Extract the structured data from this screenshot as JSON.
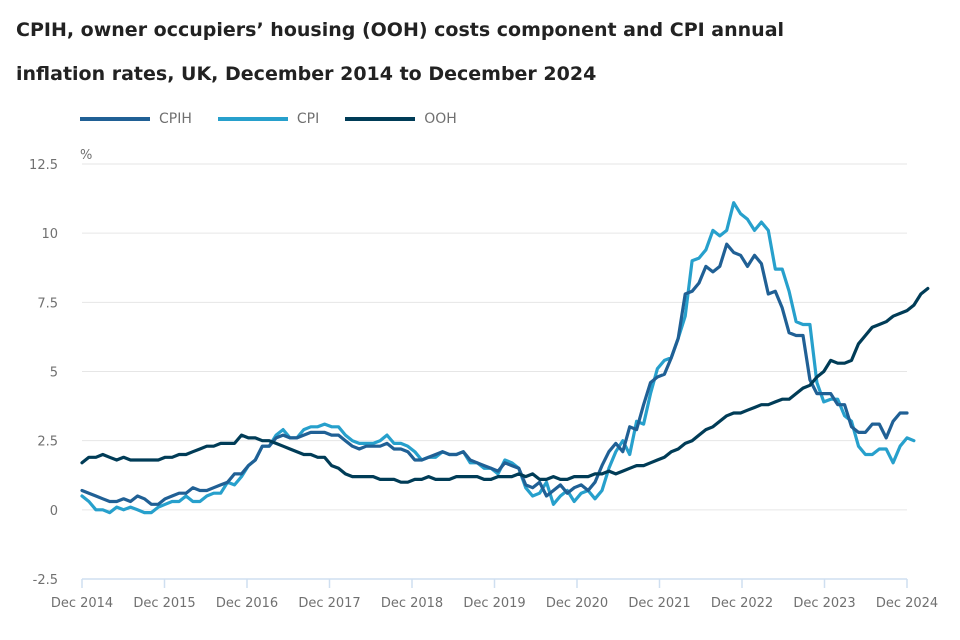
{
  "chart_data": {
    "type": "line",
    "title": "CPIH, owner occupiers’ housing (OOH) costs component and CPI annual inflation rates, UK, December 2014 to December 2024",
    "xlabel": "",
    "ylabel": "%",
    "ylim": [
      -2.5,
      12.5
    ],
    "yticks": [
      "12.5",
      "10",
      "7.5",
      "5",
      "2.5",
      "0",
      "-2.5"
    ],
    "ytick_values": [
      12.5,
      10,
      7.5,
      5,
      2.5,
      0,
      -2.5
    ],
    "xticks": [
      "Dec 2014",
      "Dec 2015",
      "Dec 2016",
      "Dec 2017",
      "Dec 2018",
      "Dec 2019",
      "Dec 2020",
      "Dec 2021",
      "Dec 2022",
      "Dec 2023",
      "Dec 2024"
    ],
    "grid": true,
    "legend_position": "top-left",
    "x_start": "Dec 2014",
    "x_end": "Dec 2024",
    "x_frequency": "monthly",
    "series": [
      {
        "name": "CPIH",
        "color": "#206095",
        "values": [
          0.7,
          0.6,
          0.5,
          0.4,
          0.3,
          0.3,
          0.4,
          0.3,
          0.5,
          0.4,
          0.2,
          0.2,
          0.4,
          0.5,
          0.6,
          0.6,
          0.8,
          0.7,
          0.7,
          0.8,
          0.9,
          1.0,
          1.3,
          1.3,
          1.6,
          1.8,
          2.3,
          2.3,
          2.6,
          2.7,
          2.6,
          2.6,
          2.7,
          2.8,
          2.8,
          2.8,
          2.7,
          2.7,
          2.5,
          2.3,
          2.2,
          2.3,
          2.3,
          2.3,
          2.4,
          2.2,
          2.2,
          2.1,
          1.8,
          1.8,
          1.9,
          2.0,
          2.1,
          2.0,
          2.0,
          2.1,
          1.8,
          1.7,
          1.6,
          1.5,
          1.4,
          1.7,
          1.6,
          1.5,
          0.9,
          0.8,
          1.0,
          0.5,
          0.7,
          0.9,
          0.6,
          0.8,
          0.9,
          0.7,
          1.0,
          1.6,
          2.1,
          2.4,
          2.1,
          3.0,
          2.9,
          3.8,
          4.6,
          4.8,
          4.9,
          5.5,
          6.2,
          7.8,
          7.9,
          8.2,
          8.8,
          8.6,
          8.8,
          9.6,
          9.3,
          9.2,
          8.8,
          9.2,
          8.9,
          7.8,
          7.9,
          7.3,
          6.4,
          6.3,
          6.3,
          4.7,
          4.2,
          4.2,
          4.2,
          3.8,
          3.8,
          3.0,
          2.8,
          2.8,
          3.1,
          3.1,
          2.6,
          3.2,
          3.5,
          3.5
        ]
      },
      {
        "name": "CPI",
        "color": "#27a0cc",
        "values": [
          0.5,
          0.3,
          0.0,
          0.0,
          -0.1,
          0.1,
          0.0,
          0.1,
          0.0,
          -0.1,
          -0.1,
          0.1,
          0.2,
          0.3,
          0.3,
          0.5,
          0.3,
          0.3,
          0.5,
          0.6,
          0.6,
          1.0,
          0.9,
          1.2,
          1.6,
          1.8,
          2.3,
          2.3,
          2.7,
          2.9,
          2.6,
          2.6,
          2.9,
          3.0,
          3.0,
          3.1,
          3.0,
          3.0,
          2.7,
          2.5,
          2.4,
          2.4,
          2.4,
          2.5,
          2.7,
          2.4,
          2.4,
          2.3,
          2.1,
          1.8,
          1.9,
          1.9,
          2.1,
          2.0,
          2.0,
          2.1,
          1.7,
          1.7,
          1.5,
          1.5,
          1.3,
          1.8,
          1.7,
          1.5,
          0.8,
          0.5,
          0.6,
          1.0,
          0.2,
          0.5,
          0.7,
          0.3,
          0.6,
          0.7,
          0.4,
          0.7,
          1.5,
          2.1,
          2.5,
          2.0,
          3.2,
          3.1,
          4.2,
          5.1,
          5.4,
          5.5,
          6.2,
          7.0,
          9.0,
          9.1,
          9.4,
          10.1,
          9.9,
          10.1,
          11.1,
          10.7,
          10.5,
          10.1,
          10.4,
          10.1,
          8.7,
          8.7,
          7.9,
          6.8,
          6.7,
          6.7,
          4.6,
          3.9,
          4.0,
          4.0,
          3.4,
          3.2,
          2.3,
          2.0,
          2.0,
          2.2,
          2.2,
          1.7,
          2.3,
          2.6,
          2.5
        ]
      },
      {
        "name": "OOH",
        "color": "#003c57",
        "values": [
          1.7,
          1.9,
          1.9,
          2.0,
          1.9,
          1.8,
          1.9,
          1.8,
          1.8,
          1.8,
          1.8,
          1.8,
          1.9,
          1.9,
          2.0,
          2.0,
          2.1,
          2.2,
          2.3,
          2.3,
          2.4,
          2.4,
          2.4,
          2.7,
          2.6,
          2.6,
          2.5,
          2.5,
          2.4,
          2.3,
          2.2,
          2.1,
          2.0,
          2.0,
          1.9,
          1.9,
          1.6,
          1.5,
          1.3,
          1.2,
          1.2,
          1.2,
          1.2,
          1.1,
          1.1,
          1.1,
          1.0,
          1.0,
          1.1,
          1.1,
          1.2,
          1.1,
          1.1,
          1.1,
          1.2,
          1.2,
          1.2,
          1.2,
          1.1,
          1.1,
          1.2,
          1.2,
          1.2,
          1.3,
          1.2,
          1.3,
          1.1,
          1.1,
          1.2,
          1.1,
          1.1,
          1.2,
          1.2,
          1.2,
          1.3,
          1.3,
          1.4,
          1.3,
          1.4,
          1.5,
          1.6,
          1.6,
          1.7,
          1.8,
          1.9,
          2.1,
          2.2,
          2.4,
          2.5,
          2.7,
          2.9,
          3.0,
          3.2,
          3.4,
          3.5,
          3.5,
          3.6,
          3.7,
          3.8,
          3.8,
          3.9,
          4.0,
          4.0,
          4.2,
          4.4,
          4.5,
          4.8,
          5.0,
          5.4,
          5.3,
          5.3,
          5.4,
          6.0,
          6.3,
          6.6,
          6.7,
          6.8,
          7.0,
          7.1,
          7.2,
          7.4,
          7.8,
          8.0
        ]
      }
    ]
  },
  "header": {
    "title_line1": "CPIH, owner occupiers’ housing (OOH) costs component and CPI annual",
    "title_line2": "inflation rates, UK, December 2014 to December 2024"
  },
  "legend": {
    "items": [
      {
        "label": "CPIH",
        "color": "#206095"
      },
      {
        "label": "CPI",
        "color": "#27a0cc"
      },
      {
        "label": "OOH",
        "color": "#003c57"
      }
    ]
  }
}
